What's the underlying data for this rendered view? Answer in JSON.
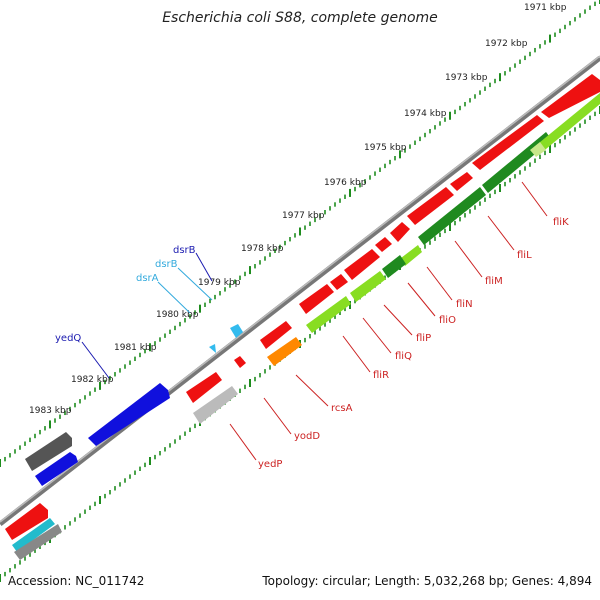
{
  "title": "Escherichia coli S88, complete genome",
  "footer": {
    "accession": "Accession: NC_011742",
    "summary": "Topology: circular; Length: 5,032,268 bp; Genes: 4,894"
  },
  "kbp_labels": [
    "1971 kbp",
    "1972 kbp",
    "1973 kbp",
    "1974 kbp",
    "1975 kbp",
    "1976 kbp",
    "1977 kbp",
    "1978 kbp",
    "1979 kbp",
    "1980 kbp",
    "1981 kbp",
    "1982 kbp",
    "1983 kbp"
  ],
  "genes_lower": [
    "fliK",
    "fliL",
    "fliM",
    "fliN",
    "fliO",
    "fliP",
    "fliQ",
    "fliR",
    "rcsA",
    "yodD",
    "yedP"
  ],
  "genes_upper": [
    "dsrB",
    "dsrB",
    "dsrA",
    "yedQ"
  ],
  "colors": {
    "backbone": "#8a8a8a",
    "ticks": "#1e8c1e",
    "forward_cds": "#ee1111",
    "reverse_cds": "#1010dd",
    "rna": "#33bbee",
    "pseudogene": "#555555",
    "flagellar_dark": "#1f8a1f",
    "flagellar_light": "#88dd22",
    "other_orange": "#ff8800",
    "lower_label": "#cc2222",
    "upper_label_dark": "#1b1bb0",
    "upper_label_light": "#33aadd"
  }
}
